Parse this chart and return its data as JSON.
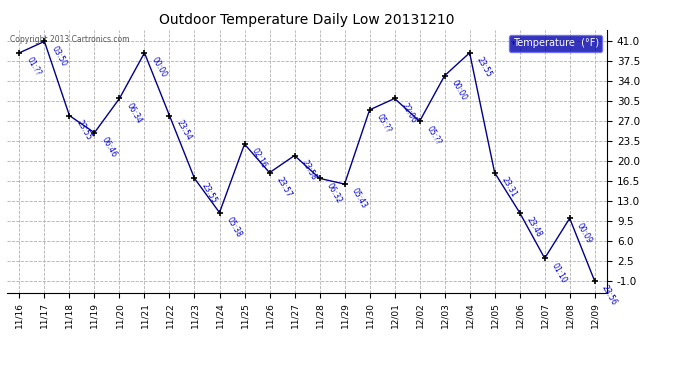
{
  "title": "Outdoor Temperature Daily Low 20131210",
  "legend_label": "Temperature  (°F)",
  "background_color": "#ffffff",
  "plot_bg_color": "#ffffff",
  "line_color": "#00008B",
  "marker_color": "#000000",
  "grid_color": "#b0b0b0",
  "copyright_text": "Copyright 2013 Cartronics.com",
  "dates": [
    "11/16",
    "11/17",
    "11/18",
    "11/19",
    "11/20",
    "11/21",
    "11/22",
    "11/23",
    "11/24",
    "11/25",
    "11/26",
    "11/27",
    "11/28",
    "11/29",
    "11/30",
    "12/01",
    "12/02",
    "12/03",
    "12/04",
    "12/05",
    "12/06",
    "12/07",
    "12/08",
    "12/09"
  ],
  "values": [
    39.0,
    41.0,
    28.0,
    25.0,
    31.0,
    39.0,
    28.0,
    17.0,
    11.0,
    23.0,
    18.0,
    21.0,
    17.0,
    16.0,
    29.0,
    31.0,
    27.0,
    35.0,
    39.0,
    18.0,
    11.0,
    3.0,
    10.0,
    -1.0
  ],
  "time_labels": [
    "01:??",
    "03:50",
    "23:55",
    "06:46",
    "06:34",
    "00:00",
    "23:54",
    "23:55",
    "05:38",
    "02:16",
    "23:57",
    "23:58",
    "06:32",
    "05:43",
    "05:??",
    "22:06",
    "05:??",
    "00:00",
    "23:55",
    "23:31",
    "23:48",
    "01:10",
    "00:09",
    "23:56"
  ],
  "ylim": [
    -3.0,
    43.0
  ],
  "yticks": [
    -1.0,
    2.5,
    6.0,
    9.5,
    13.0,
    16.5,
    20.0,
    23.5,
    27.0,
    30.5,
    34.0,
    37.5,
    41.0
  ]
}
